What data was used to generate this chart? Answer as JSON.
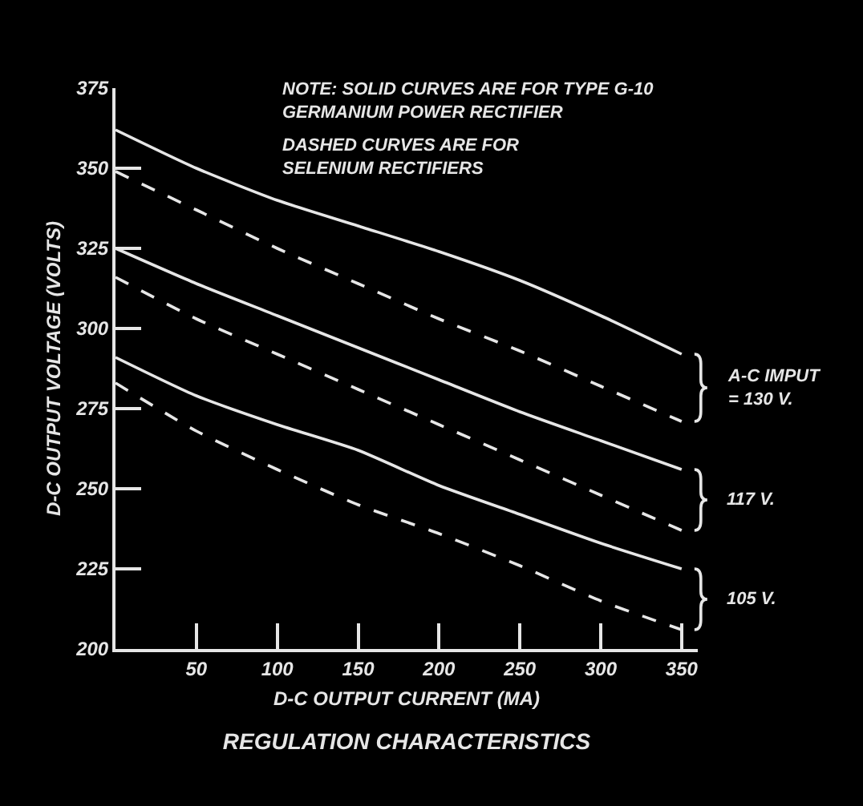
{
  "chart_data": {
    "type": "line",
    "title": "REGULATION CHARACTERISTICS",
    "xlabel": "D-C OUTPUT CURRENT (MA)",
    "ylabel": "D-C OUTPUT VOLTAGE (VOLTS)",
    "x": [
      0,
      50,
      100,
      150,
      200,
      250,
      300,
      350
    ],
    "series": [
      {
        "color": "#e6e6e6",
        "line_style": "solid",
        "values": [
          362,
          350,
          340,
          332,
          324,
          315,
          304,
          292
        ]
      },
      {
        "color": "#e6e6e6",
        "line_style": "dashed",
        "values": [
          349,
          337,
          325,
          314,
          303,
          293,
          282,
          271
        ]
      },
      {
        "color": "#e6e6e6",
        "line_style": "solid",
        "values": [
          325,
          314,
          304,
          294,
          284,
          274,
          265,
          256
        ]
      },
      {
        "color": "#e6e6e6",
        "line_style": "dashed",
        "values": [
          316,
          303,
          292,
          281,
          270,
          259,
          248,
          237
        ]
      },
      {
        "color": "#e6e6e6",
        "line_style": "solid",
        "values": [
          291,
          279,
          270,
          262,
          251,
          242,
          233,
          225
        ]
      },
      {
        "color": "#e6e6e6",
        "line_style": "dashed",
        "values": [
          283,
          268,
          256,
          245,
          236,
          226,
          215,
          206
        ]
      }
    ],
    "xlim": [
      0,
      360
    ],
    "xticks": [
      50,
      100,
      150,
      200,
      250,
      300,
      350
    ],
    "ylim": [
      200,
      375
    ],
    "yticks": [
      200,
      225,
      250,
      275,
      300,
      325,
      350,
      375
    ],
    "marker": "none",
    "annotations": [
      "NOTE: SOLID CURVES ARE FOR TYPE G-10\nGERMANIUM POWER RECTIFIER",
      "DASHED CURVES ARE FOR\nSELENIUM RECTIFIERS",
      "A-C IMPUT\n= 130 V.",
      "117 V.",
      "105 V."
    ]
  }
}
